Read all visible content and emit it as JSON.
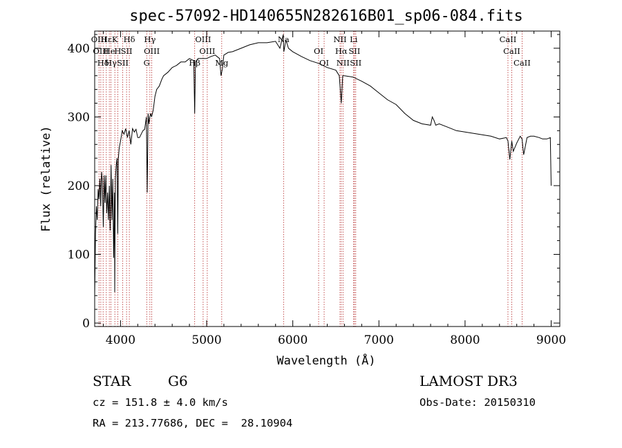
{
  "chart_data": {
    "type": "line",
    "title": "spec-57092-HD140655N282616B01_sp06-084.fits",
    "xlabel": "Wavelength (Å)",
    "ylabel": "Flux (relative)",
    "xlim": [
      3700,
      9100
    ],
    "ylim": [
      -5,
      425
    ],
    "xticks": [
      4000,
      5000,
      6000,
      7000,
      8000,
      9000
    ],
    "yticks": [
      0,
      100,
      200,
      300,
      400
    ],
    "grid": false,
    "series": [
      {
        "color": "#000000",
        "x": [
          3700,
          3710,
          3720,
          3730,
          3740,
          3750,
          3760,
          3770,
          3780,
          3790,
          3800,
          3810,
          3820,
          3830,
          3840,
          3850,
          3860,
          3870,
          3880,
          3890,
          3900,
          3910,
          3920,
          3930,
          3933,
          3940,
          3950,
          3960,
          3968,
          3975,
          3985,
          4000,
          4020,
          4040,
          4060,
          4080,
          4100,
          4120,
          4140,
          4160,
          4180,
          4200,
          4220,
          4240,
          4260,
          4280,
          4300,
          4310,
          4320,
          4330,
          4340,
          4350,
          4360,
          4380,
          4400,
          4420,
          4450,
          4480,
          4500,
          4550,
          4600,
          4650,
          4700,
          4750,
          4800,
          4850,
          4861,
          4870,
          4900,
          4950,
          5000,
          5050,
          5100,
          5150,
          5167,
          5183,
          5200,
          5250,
          5300,
          5400,
          5500,
          5600,
          5700,
          5800,
          5850,
          5890,
          5896,
          5920,
          5950,
          6000,
          6100,
          6200,
          6300,
          6400,
          6500,
          6540,
          6563,
          6580,
          6600,
          6700,
          6800,
          6900,
          7000,
          7100,
          7200,
          7300,
          7400,
          7500,
          7600,
          7620,
          7640,
          7660,
          7700,
          7800,
          7900,
          8000,
          8100,
          8200,
          8300,
          8400,
          8480,
          8498,
          8520,
          8542,
          8560,
          8600,
          8640,
          8662,
          8680,
          8720,
          8760,
          8800,
          8860,
          8900,
          8950,
          8990,
          9000
        ],
        "y": [
          40,
          130,
          170,
          150,
          195,
          180,
          210,
          170,
          220,
          205,
          140,
          215,
          175,
          215,
          160,
          190,
          150,
          200,
          135,
          230,
          150,
          210,
          95,
          190,
          45,
          210,
          230,
          240,
          130,
          240,
          255,
          265,
          280,
          275,
          283,
          270,
          280,
          260,
          283,
          278,
          282,
          270,
          270,
          275,
          280,
          282,
          300,
          190,
          305,
          290,
          300,
          305,
          300,
          310,
          330,
          340,
          345,
          355,
          360,
          365,
          372,
          375,
          380,
          380,
          385,
          382,
          305,
          380,
          385,
          385,
          385,
          388,
          390,
          385,
          360,
          370,
          390,
          394,
          395,
          400,
          405,
          408,
          408,
          410,
          400,
          420,
          395,
          412,
          400,
          395,
          388,
          382,
          378,
          372,
          368,
          360,
          320,
          360,
          360,
          358,
          352,
          345,
          335,
          325,
          318,
          305,
          295,
          290,
          288,
          300,
          295,
          288,
          290,
          285,
          280,
          278,
          276,
          274,
          272,
          268,
          270,
          265,
          238,
          265,
          250,
          262,
          272,
          268,
          245,
          270,
          272,
          272,
          270,
          268,
          268,
          270,
          200
        ]
      }
    ],
    "line_markers": [
      {
        "wavelength": 3750,
        "label": "OIII"
      },
      {
        "wavelength": 3771,
        "label": "OIII"
      },
      {
        "wavelength": 3798,
        "label": "Hδ"
      },
      {
        "wavelength": 3835,
        "label": "Hε"
      },
      {
        "wavelength": 3870,
        "label": "He"
      },
      {
        "wavelength": 3889,
        "label": "Hγ"
      },
      {
        "wavelength": 3934,
        "label": "K"
      },
      {
        "wavelength": 3968,
        "label": "H"
      },
      {
        "wavelength": 4026,
        "label": "SII"
      },
      {
        "wavelength": 4102,
        "label": "Hδ"
      },
      {
        "wavelength": 4070,
        "label": "SII"
      },
      {
        "wavelength": 4304,
        "label": "G"
      },
      {
        "wavelength": 4341,
        "label": "Hγ"
      },
      {
        "wavelength": 4363,
        "label": "OIII"
      },
      {
        "wavelength": 4861,
        "label": "Hβ"
      },
      {
        "wavelength": 4959,
        "label": "OIII"
      },
      {
        "wavelength": 5007,
        "label": "OIII"
      },
      {
        "wavelength": 5175,
        "label": "Mg"
      },
      {
        "wavelength": 5893,
        "label": "Na"
      },
      {
        "wavelength": 6300,
        "label": "OI"
      },
      {
        "wavelength": 6364,
        "label": "OI"
      },
      {
        "wavelength": 6548,
        "label": "NII"
      },
      {
        "wavelength": 6563,
        "label": "Hα"
      },
      {
        "wavelength": 6583,
        "label": "NII"
      },
      {
        "wavelength": 6707,
        "label": "Li"
      },
      {
        "wavelength": 6716,
        "label": "SII"
      },
      {
        "wavelength": 6731,
        "label": "SII"
      },
      {
        "wavelength": 8498,
        "label": "CaII"
      },
      {
        "wavelength": 8542,
        "label": "CaII"
      },
      {
        "wavelength": 8662,
        "label": "CaII"
      }
    ]
  },
  "info": {
    "object_type": "STAR",
    "subclass": "G6",
    "survey": "LAMOST DR3",
    "cz": "cz = 151.8 ± 4.0 km/s",
    "obs_date": "Obs-Date: 20150310",
    "coords": "RA = 213.77686, DEC =  28.10904"
  },
  "colors": {
    "spectrum": "#000000",
    "marker": "#b22222",
    "axes": "#000000"
  }
}
